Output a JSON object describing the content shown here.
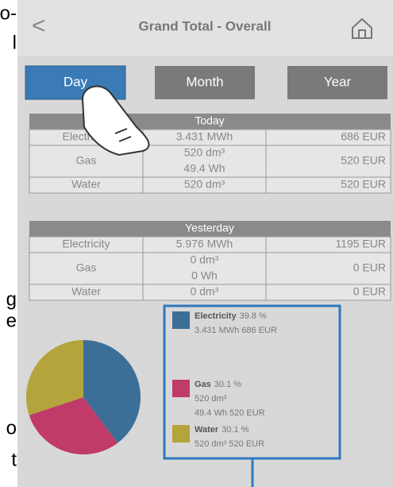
{
  "margin_fragments": [
    "o-",
    "l",
    "g",
    "e",
    "o",
    "t"
  ],
  "header": {
    "back": "<",
    "title": "Grand Total - Overall"
  },
  "tabs": [
    "Day",
    "Month",
    "Year"
  ],
  "active_tab": 0,
  "tables": [
    {
      "title": "Today",
      "rows": [
        [
          "Electricity",
          "3.431 MWh",
          "686 EUR"
        ],
        [
          "Gas",
          [
            "520 dm³",
            "49.4 Wh"
          ],
          "520 EUR"
        ],
        [
          "Water",
          "520 dm³",
          "520 EUR"
        ]
      ]
    },
    {
      "title": "Yesterday",
      "rows": [
        [
          "Electricity",
          "5.976 MWh",
          "1195 EUR"
        ],
        [
          "Gas",
          [
            "0 dm³",
            "0 Wh"
          ],
          "0 EUR"
        ],
        [
          "Water",
          "0 dm³",
          "0 EUR"
        ]
      ]
    }
  ],
  "pie": {
    "type": "pie",
    "slices": [
      {
        "name": "Electricity",
        "value": 39.8,
        "value_label": "39.8 %",
        "color": "#3b6f98",
        "details": [
          "3.431 MWh 686 EUR"
        ]
      },
      {
        "name": "Gas",
        "value": 30.1,
        "value_label": "30.1 %",
        "color": "#c13b68",
        "details": [
          "520 dm³",
          "49.4 Wh 520 EUR"
        ]
      },
      {
        "name": "Water",
        "value": 30.1,
        "value_label": "30.1 %",
        "color": "#b3a43c",
        "details": [
          "520 dm³ 520 EUR"
        ]
      }
    ]
  }
}
